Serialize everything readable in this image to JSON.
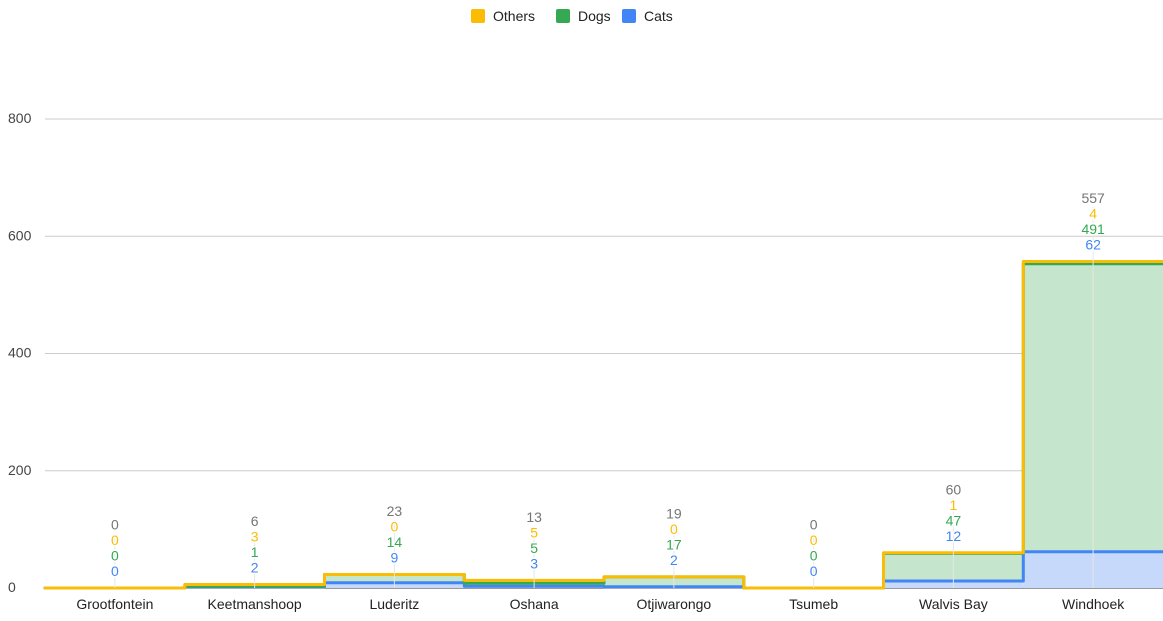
{
  "chart_data": {
    "type": "area",
    "step": true,
    "stacked": true,
    "categories": [
      "Grootfontein",
      "Keetmanshoop",
      "Luderitz",
      "Oshana",
      "Otjiwarongo",
      "Tsumeb",
      "Walvis Bay",
      "Windhoek"
    ],
    "series": [
      {
        "name": "Cats",
        "color": "#4285f4",
        "fill": "#c6d9fb",
        "values": [
          0,
          2,
          9,
          3,
          2,
          0,
          12,
          62
        ]
      },
      {
        "name": "Dogs",
        "color": "#34a853",
        "fill": "#c5e6cc",
        "values": [
          0,
          1,
          14,
          5,
          17,
          0,
          47,
          491
        ]
      },
      {
        "name": "Others",
        "color": "#fbbc04",
        "fill": "#fdebb4",
        "values": [
          0,
          3,
          0,
          5,
          0,
          0,
          1,
          4
        ]
      }
    ],
    "totals": [
      0,
      6,
      23,
      13,
      19,
      0,
      60,
      557
    ],
    "total_color": "#757575",
    "legend_order": [
      "Others",
      "Dogs",
      "Cats"
    ],
    "legend_position": "top",
    "yticks": [
      0,
      200,
      400,
      600,
      800
    ],
    "ylim": [
      0,
      800
    ],
    "grid": true,
    "title": "",
    "xlabel": "",
    "ylabel": ""
  }
}
